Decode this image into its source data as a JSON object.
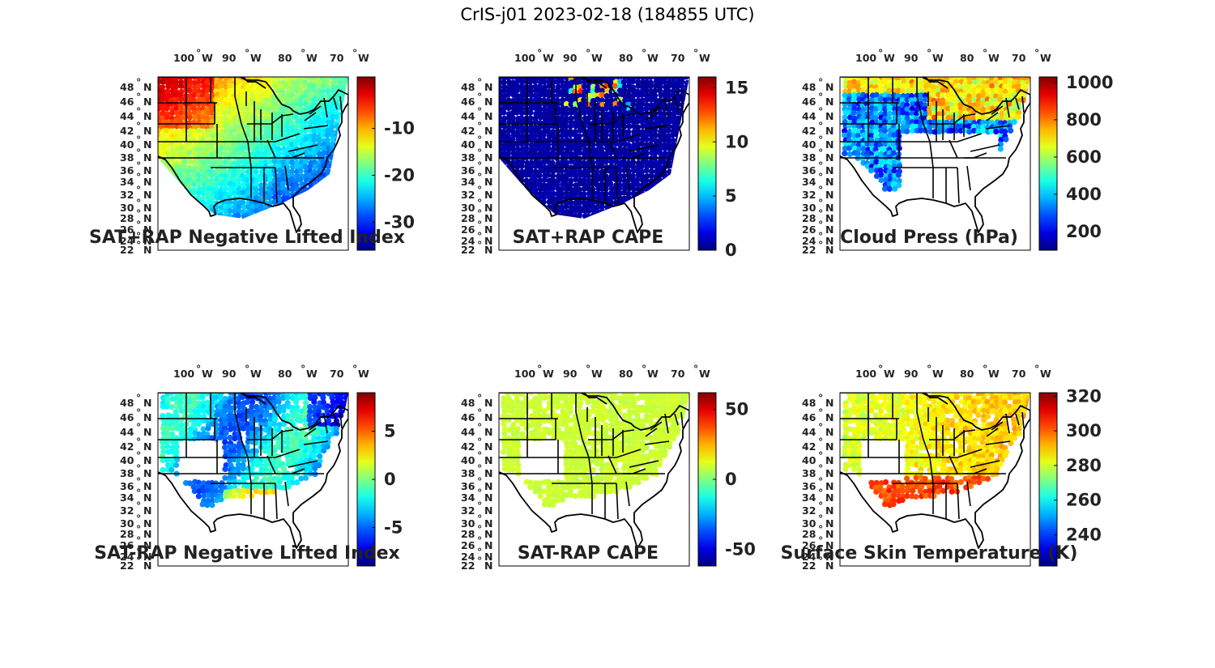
{
  "title": "CrIS-j01 2023-02-18 (184855 UTC)",
  "lon_labels": [
    {
      "deg": "100",
      "suf": "W"
    },
    {
      "deg": "90",
      "suf": "W"
    },
    {
      "deg": "80",
      "suf": "W"
    },
    {
      "deg": "70",
      "suf": "W"
    }
  ],
  "lat_labels": [
    {
      "deg": "48",
      "suf": "N"
    },
    {
      "deg": "46",
      "suf": "N"
    },
    {
      "deg": "44",
      "suf": "N"
    },
    {
      "deg": "42",
      "suf": "N"
    },
    {
      "deg": "40",
      "suf": "N"
    },
    {
      "deg": "38",
      "suf": "N"
    },
    {
      "deg": "36",
      "suf": "N"
    },
    {
      "deg": "34",
      "suf": "N"
    },
    {
      "deg": "32",
      "suf": "N"
    },
    {
      "deg": "30",
      "suf": "N"
    },
    {
      "deg": "28",
      "suf": "N"
    },
    {
      "deg": "26",
      "suf": "N"
    },
    {
      "deg": "24",
      "suf": "N"
    },
    {
      "deg": "22",
      "suf": "N"
    }
  ],
  "colormap": "jet",
  "panels": [
    {
      "title": "SAT+RAP Negative Lifted Index",
      "field": "nli_total",
      "cbar": {
        "min": -36,
        "max": 1,
        "ticks": [
          -30,
          -20,
          -10
        ]
      }
    },
    {
      "title": "SAT+RAP CAPE",
      "field": "cape_total",
      "cbar": {
        "min": 0,
        "max": 16,
        "ticks": [
          0,
          5,
          10,
          15
        ]
      }
    },
    {
      "title": "Cloud Press (hPa)",
      "field": "cloud_pressure",
      "cbar": {
        "min": 100,
        "max": 1030,
        "ticks": [
          200,
          400,
          600,
          800,
          1000
        ]
      }
    },
    {
      "title": "SAT-RAP Negative Lifted Index",
      "field": "nli_difference",
      "cbar": {
        "min": -9,
        "max": 9,
        "ticks": [
          -5,
          0,
          5
        ]
      }
    },
    {
      "title": "SAT-RAP CAPE",
      "field": "cape_difference",
      "cbar": {
        "min": -62,
        "max": 62,
        "ticks": [
          -50,
          0,
          50
        ]
      }
    },
    {
      "title": "Surface Skin Temperature (K)",
      "field": "skin_temperature",
      "cbar": {
        "min": 222,
        "max": 322,
        "ticks": [
          240,
          260,
          280,
          300,
          320
        ]
      }
    }
  ]
}
